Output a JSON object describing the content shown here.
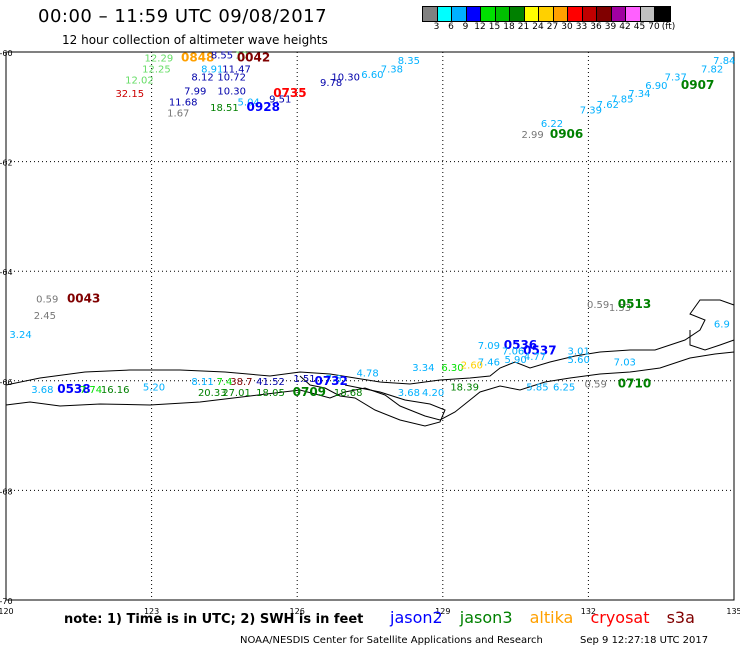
{
  "header": {
    "title": "00:00 – 11:59 UTC 09/08/2017",
    "subtitle": "12 hour collection of altimeter wave heights"
  },
  "legend": {
    "colors": [
      "#808080",
      "#00ffff",
      "#00b0ff",
      "#0000ff",
      "#00e000",
      "#00c000",
      "#008000",
      "#ffff00",
      "#ffd000",
      "#ffa000",
      "#ff0000",
      "#c00000",
      "#800000",
      "#a000a0",
      "#ff60ff",
      "#c0c0c0",
      "#000000"
    ],
    "labels": [
      "3",
      "6",
      "9",
      "12",
      "15",
      "18",
      "21",
      "24",
      "27",
      "30",
      "33",
      "36",
      "39",
      "42",
      "45",
      "70",
      "(ft)"
    ]
  },
  "axes": {
    "x_ticks": [
      "120",
      "123",
      "126",
      "129",
      "132",
      "135"
    ],
    "y_ticks": [
      "-60",
      "-62",
      "-64",
      "-66",
      "-68",
      "-70"
    ]
  },
  "footer": {
    "note": "note: 1) Time is in UTC; 2) SWH is in feet",
    "satellites": [
      {
        "name": "jason2",
        "color": "#0000ff"
      },
      {
        "name": "jason3",
        "color": "#008000"
      },
      {
        "name": "altika",
        "color": "#ffa000"
      },
      {
        "name": "cryosat",
        "color": "#ff0000"
      },
      {
        "name": "s3a",
        "color": "#800000"
      }
    ],
    "credit": "NOAA/NESDIS Center for Satellite Applications and Research",
    "timestamp": "Sep  9 12:27:18 UTC 2017"
  },
  "observations": [
    {
      "text": "12.29",
      "lon": 123.15,
      "lat": -60.1,
      "color": "#66dd66"
    },
    {
      "text": "0848",
      "lon": 123.95,
      "lat": -60.1,
      "color": "#ffa000",
      "bold": true
    },
    {
      "text": "8.55",
      "lon": 124.45,
      "lat": -60.05,
      "color": "#0000aa"
    },
    {
      "text": "10",
      "lon": 124.85,
      "lat": -60.05,
      "color": "#66dd66"
    },
    {
      "text": "0042",
      "lon": 125.1,
      "lat": -60.1,
      "color": "#800000",
      "bold": true
    },
    {
      "text": "12.25",
      "lon": 123.1,
      "lat": -60.3,
      "color": "#66dd66"
    },
    {
      "text": "8.91",
      "lon": 124.25,
      "lat": -60.3,
      "color": "#00b0ff"
    },
    {
      "text": "11.47",
      "lon": 124.75,
      "lat": -60.3,
      "color": "#0000aa"
    },
    {
      "text": "8.35",
      "lon": 128.3,
      "lat": -60.15,
      "color": "#00b0ff"
    },
    {
      "text": "7.38",
      "lon": 127.95,
      "lat": -60.3,
      "color": "#00b0ff"
    },
    {
      "text": "6.60",
      "lon": 127.55,
      "lat": -60.4,
      "color": "#00b0ff"
    },
    {
      "text": "12.02",
      "lon": 122.75,
      "lat": -60.5,
      "color": "#66dd66"
    },
    {
      "text": "8.12",
      "lon": 124.05,
      "lat": -60.45,
      "color": "#0000aa"
    },
    {
      "text": "10.72",
      "lon": 124.65,
      "lat": -60.45,
      "color": "#0000aa"
    },
    {
      "text": "10.30",
      "lon": 127.0,
      "lat": -60.45,
      "color": "#0000aa"
    },
    {
      "text": "9.78",
      "lon": 126.7,
      "lat": -60.55,
      "color": "#0000aa"
    },
    {
      "text": "32.15",
      "lon": 122.55,
      "lat": -60.75,
      "color": "#cc0000"
    },
    {
      "text": "7.99",
      "lon": 123.9,
      "lat": -60.7,
      "color": "#0000aa"
    },
    {
      "text": "10.30",
      "lon": 124.65,
      "lat": -60.7,
      "color": "#0000aa"
    },
    {
      "text": "0735",
      "lon": 125.85,
      "lat": -60.75,
      "color": "#ff0000",
      "bold": true
    },
    {
      "text": "11.68",
      "lon": 123.65,
      "lat": -60.9,
      "color": "#0000aa"
    },
    {
      "text": "5.04",
      "lon": 125.0,
      "lat": -60.9,
      "color": "#00b0ff"
    },
    {
      "text": "9.51",
      "lon": 125.65,
      "lat": -60.85,
      "color": "#0000aa"
    },
    {
      "text": "18.51",
      "lon": 124.5,
      "lat": -61.0,
      "color": "#008000"
    },
    {
      "text": "0928",
      "lon": 125.3,
      "lat": -61.0,
      "color": "#0000ff",
      "bold": true
    },
    {
      "text": "1.67",
      "lon": 123.55,
      "lat": -61.1,
      "color": "#777777"
    },
    {
      "text": "7.82",
      "lon": 134.55,
      "lat": -60.3,
      "color": "#00b0ff"
    },
    {
      "text": "7.84",
      "lon": 134.8,
      "lat": -60.15,
      "color": "#00b0ff"
    },
    {
      "text": "7.37",
      "lon": 133.8,
      "lat": -60.45,
      "color": "#00b0ff"
    },
    {
      "text": "0907",
      "lon": 134.25,
      "lat": -60.6,
      "color": "#008000",
      "bold": true
    },
    {
      "text": "6.90",
      "lon": 133.4,
      "lat": -60.6,
      "color": "#00b0ff"
    },
    {
      "text": "7.34",
      "lon": 133.05,
      "lat": -60.75,
      "color": "#00b0ff"
    },
    {
      "text": "7.85",
      "lon": 132.7,
      "lat": -60.85,
      "color": "#00b0ff"
    },
    {
      "text": "7.62",
      "lon": 132.4,
      "lat": -60.95,
      "color": "#00b0ff"
    },
    {
      "text": "7.39",
      "lon": 132.05,
      "lat": -61.05,
      "color": "#00b0ff"
    },
    {
      "text": "6.22",
      "lon": 131.25,
      "lat": -61.3,
      "color": "#00b0ff"
    },
    {
      "text": "2.99",
      "lon": 130.85,
      "lat": -61.5,
      "color": "#777777"
    },
    {
      "text": "0906",
      "lon": 131.55,
      "lat": -61.5,
      "color": "#008000",
      "bold": true
    },
    {
      "text": "0.59",
      "lon": 120.85,
      "lat": -64.5,
      "color": "#777777"
    },
    {
      "text": "0043",
      "lon": 121.6,
      "lat": -64.5,
      "color": "#800000",
      "bold": true
    },
    {
      "text": "2.45",
      "lon": 120.8,
      "lat": -64.8,
      "color": "#777777"
    },
    {
      "text": "3.24",
      "lon": 120.3,
      "lat": -65.15,
      "color": "#00b0ff"
    },
    {
      "text": "0.59",
      "lon": 132.2,
      "lat": -64.6,
      "color": "#777777"
    },
    {
      "text": "1.53",
      "lon": 132.65,
      "lat": -64.65,
      "color": "#777777"
    },
    {
      "text": "0513",
      "lon": 132.95,
      "lat": -64.6,
      "color": "#008000",
      "bold": true
    },
    {
      "text": "6.9",
      "lon": 134.75,
      "lat": -64.95,
      "color": "#00b0ff"
    },
    {
      "text": "7.09",
      "lon": 129.95,
      "lat": -65.35,
      "color": "#00b0ff"
    },
    {
      "text": "0536",
      "lon": 130.6,
      "lat": -65.35,
      "color": "#0000ff",
      "bold": true
    },
    {
      "text": "7.06",
      "lon": 130.45,
      "lat": -65.45,
      "color": "#00b0ff"
    },
    {
      "text": "0537",
      "lon": 131.0,
      "lat": -65.45,
      "color": "#0000ff",
      "bold": true
    },
    {
      "text": "3.01",
      "lon": 131.8,
      "lat": -65.45,
      "color": "#00b0ff"
    },
    {
      "text": "4.77",
      "lon": 130.9,
      "lat": -65.55,
      "color": "#00b0ff"
    },
    {
      "text": "5.60",
      "lon": 131.8,
      "lat": -65.6,
      "color": "#00b0ff"
    },
    {
      "text": "7.46",
      "lon": 129.95,
      "lat": -65.65,
      "color": "#00b0ff"
    },
    {
      "text": "5.90",
      "lon": 130.5,
      "lat": -65.6,
      "color": "#00b0ff"
    },
    {
      "text": "7.03",
      "lon": 132.75,
      "lat": -65.65,
      "color": "#00b0ff"
    },
    {
      "text": "3.34",
      "lon": 128.6,
      "lat": -65.75,
      "color": "#00b0ff"
    },
    {
      "text": "6.30",
      "lon": 129.2,
      "lat": -65.75,
      "color": "#00e000"
    },
    {
      "text": "2.60",
      "lon": 129.6,
      "lat": -65.7,
      "color": "#ffd000"
    },
    {
      "text": "4.78",
      "lon": 127.45,
      "lat": -65.85,
      "color": "#00b0ff"
    },
    {
      "text": "1.51",
      "lon": 126.15,
      "lat": -65.95,
      "color": "#0000aa"
    },
    {
      "text": "7.6",
      "lon": 126.75,
      "lat": -65.95,
      "color": "#00b0ff"
    },
    {
      "text": "0732",
      "lon": 126.7,
      "lat": -66.0,
      "color": "#0000ff",
      "bold": true
    },
    {
      "text": "8.11",
      "lon": 124.05,
      "lat": -66.0,
      "color": "#00b0ff"
    },
    {
      "text": "7.4",
      "lon": 124.5,
      "lat": -66.0,
      "color": "#00e000"
    },
    {
      "text": "38.7",
      "lon": 124.85,
      "lat": -66.0,
      "color": "#800000"
    },
    {
      "text": "41.52",
      "lon": 125.45,
      "lat": -66.0,
      "color": "#0000aa"
    },
    {
      "text": "0.59",
      "lon": 132.15,
      "lat": -66.05,
      "color": "#777777"
    },
    {
      "text": "0710",
      "lon": 132.95,
      "lat": -66.05,
      "color": "#008000",
      "bold": true
    },
    {
      "text": "3.68",
      "lon": 120.75,
      "lat": -66.15,
      "color": "#00b0ff"
    },
    {
      "text": "0538",
      "lon": 121.4,
      "lat": -66.15,
      "color": "#0000ff",
      "bold": true
    },
    {
      "text": "7.74",
      "lon": 121.75,
      "lat": -66.15,
      "color": "#00e000"
    },
    {
      "text": "16.16",
      "lon": 122.25,
      "lat": -66.15,
      "color": "#008000"
    },
    {
      "text": "5.20",
      "lon": 123.05,
      "lat": -66.1,
      "color": "#00b0ff"
    },
    {
      "text": "18.39",
      "lon": 129.45,
      "lat": -66.1,
      "color": "#008000"
    },
    {
      "text": "5.85",
      "lon": 130.95,
      "lat": -66.1,
      "color": "#00b0ff"
    },
    {
      "text": "6.25",
      "lon": 131.5,
      "lat": -66.1,
      "color": "#00b0ff"
    },
    {
      "text": "20.33",
      "lon": 124.25,
      "lat": -66.2,
      "color": "#008000"
    },
    {
      "text": "27.01",
      "lon": 124.75,
      "lat": -66.2,
      "color": "#008000"
    },
    {
      "text": "18.05",
      "lon": 125.45,
      "lat": -66.2,
      "color": "#008000"
    },
    {
      "text": "0709",
      "lon": 126.25,
      "lat": -66.2,
      "color": "#008000",
      "bold": true
    },
    {
      "text": "18.68",
      "lon": 127.05,
      "lat": -66.2,
      "color": "#008000"
    },
    {
      "text": "3.68",
      "lon": 128.3,
      "lat": -66.2,
      "color": "#00b0ff"
    },
    {
      "text": "4.20",
      "lon": 128.8,
      "lat": -66.2,
      "color": "#00b0ff"
    }
  ]
}
